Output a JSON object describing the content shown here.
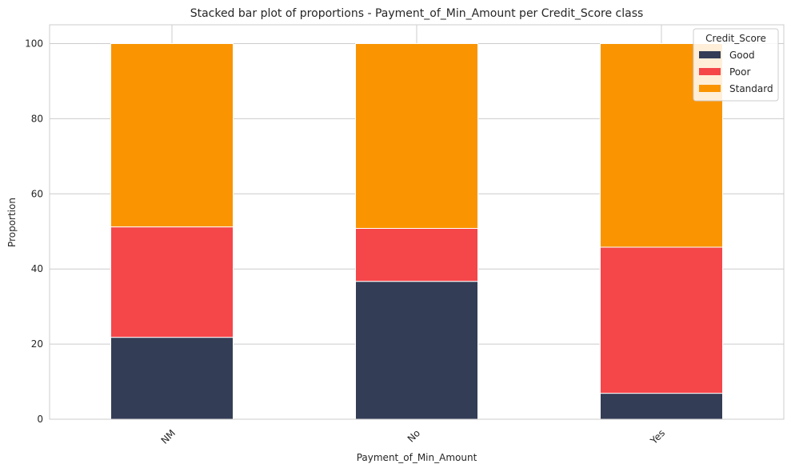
{
  "chart_data": {
    "type": "bar",
    "stacked": true,
    "title": "Stacked bar plot of proportions - Payment_of_Min_Amount per Credit_Score class",
    "xlabel": "Payment_of_Min_Amount",
    "ylabel": "Proportion",
    "categories": [
      "NM",
      "No",
      "Yes"
    ],
    "ylim": [
      0,
      105
    ],
    "yticks": [
      "0",
      "20",
      "40",
      "60",
      "80",
      "100"
    ],
    "grid": true,
    "legend": {
      "title": "Credit_Score",
      "position": "top-right"
    },
    "series": [
      {
        "name": "Good",
        "color": "#333d56",
        "values": [
          21.8,
          36.7,
          6.9
        ]
      },
      {
        "name": "Poor",
        "color": "#f5464a",
        "values": [
          29.4,
          14.1,
          38.9
        ]
      },
      {
        "name": "Standard",
        "color": "#fa9400",
        "values": [
          48.8,
          49.2,
          54.2
        ]
      }
    ]
  }
}
